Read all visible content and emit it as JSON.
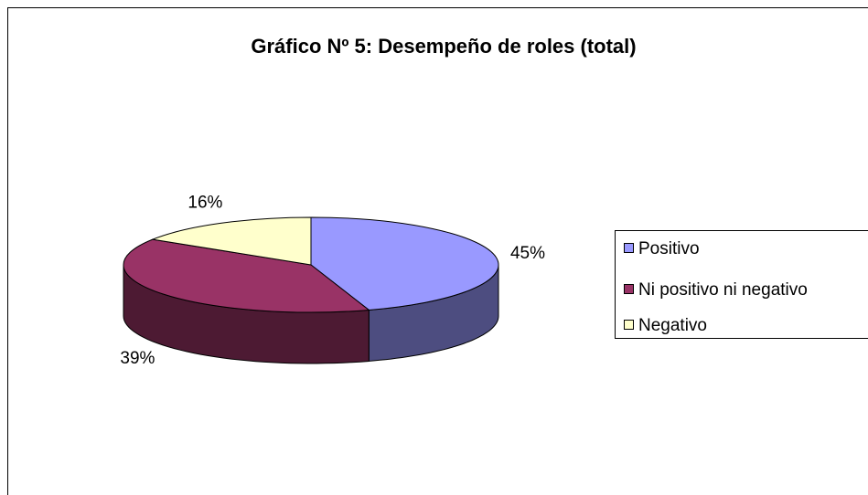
{
  "chart_data": {
    "type": "pie",
    "title": "Gráfico Nº 5: Desempeño de roles (total)",
    "categories": [
      "Positivo",
      "Ni positivo ni negativo",
      "Negativo"
    ],
    "values": [
      45,
      39,
      16
    ],
    "value_labels": [
      "45%",
      "39%",
      "16%"
    ],
    "colors": [
      "#9999ff",
      "#993366",
      "#ffffcc"
    ],
    "legend": "right"
  }
}
